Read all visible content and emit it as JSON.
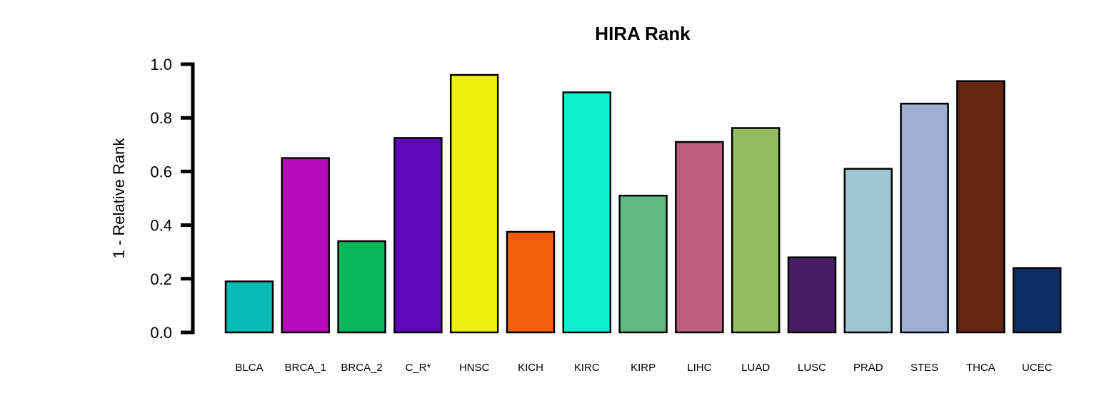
{
  "chart_data": {
    "type": "bar",
    "title": "HIRA Rank",
    "xlabel": "",
    "ylabel": "1 - Relative Rank",
    "ylim": [
      0,
      1.0
    ],
    "yticks": [
      "0.0",
      "0.2",
      "0.4",
      "0.6",
      "0.8",
      "1.0"
    ],
    "grid": false,
    "legend": "none",
    "categories": [
      "BLCA",
      "BRCA_1",
      "BRCA_2",
      "C_R*",
      "HNSC",
      "KICH",
      "KIRC",
      "KIRP",
      "LIHC",
      "LUAD",
      "LUSC",
      "PRAD",
      "STES",
      "THCA",
      "UCEC"
    ],
    "values": [
      0.19,
      0.65,
      0.34,
      0.725,
      0.96,
      0.375,
      0.895,
      0.51,
      0.71,
      0.762,
      0.28,
      0.61,
      0.853,
      0.937,
      0.24
    ],
    "colors": [
      "#0ABAB5",
      "#B40CBC",
      "#08B75C",
      "#5E08B7",
      "#EEF00C",
      "#F05E0E",
      "#0EF0D0",
      "#60BA80",
      "#BC6080",
      "#97BC60",
      "#481C60",
      "#A0C6D2",
      "#A0AED2",
      "#662412",
      "#0E2E66"
    ]
  }
}
